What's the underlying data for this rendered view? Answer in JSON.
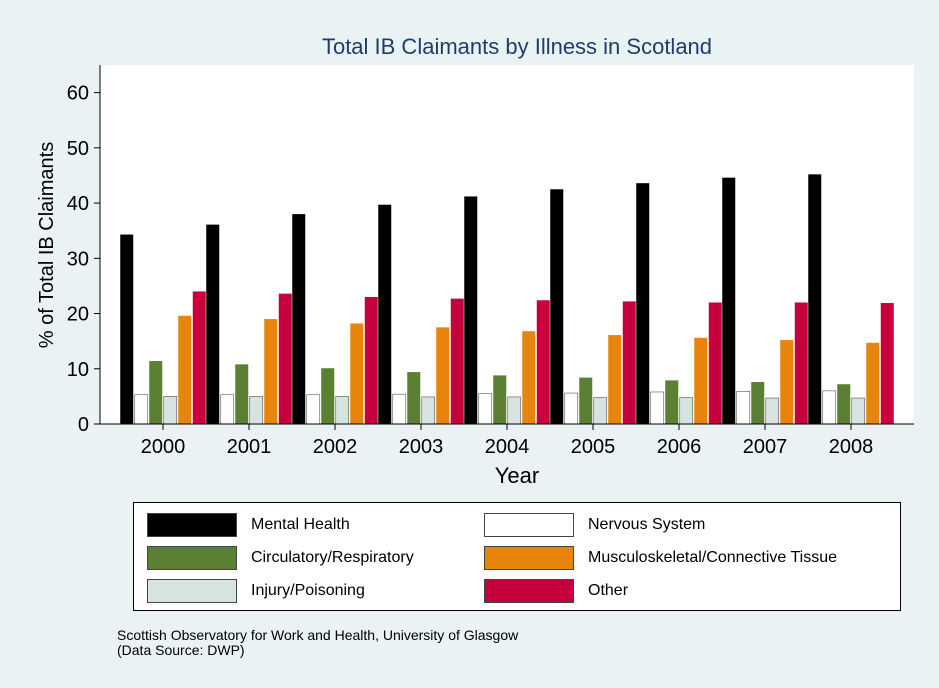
{
  "chart_data": {
    "type": "bar",
    "title": "Total IB Claimants by Illness in Scotland",
    "xlabel": "Year",
    "ylabel": "% of Total IB Claimants",
    "ylim": [
      0,
      65
    ],
    "yticks": [
      0,
      10,
      20,
      30,
      40,
      50,
      60
    ],
    "grid": false,
    "legend_position": "bottom",
    "categories": [
      "2000",
      "2001",
      "2002",
      "2003",
      "2004",
      "2005",
      "2006",
      "2007",
      "2008"
    ],
    "series": [
      {
        "name": "Mental Health",
        "color": "#000000",
        "values": [
          34.3,
          36.1,
          38.0,
          39.7,
          41.2,
          42.5,
          43.6,
          44.6,
          45.2
        ]
      },
      {
        "name": "Nervous System",
        "color": "#ffffff",
        "values": [
          5.3,
          5.3,
          5.3,
          5.4,
          5.5,
          5.6,
          5.8,
          5.9,
          6.0
        ]
      },
      {
        "name": "Circulatory/Respiratory",
        "color": "#5b7f33",
        "values": [
          11.4,
          10.8,
          10.1,
          9.4,
          8.8,
          8.4,
          7.9,
          7.6,
          7.2
        ]
      },
      {
        "name": "Injury/Poisoning",
        "color": "#d6e3e0",
        "values": [
          5.0,
          5.0,
          5.0,
          4.9,
          4.9,
          4.8,
          4.8,
          4.7,
          4.7
        ]
      },
      {
        "name": "Musculoskeletal/Connective Tissue",
        "color": "#e8830b",
        "values": [
          19.6,
          19.0,
          18.2,
          17.5,
          16.8,
          16.1,
          15.6,
          15.2,
          14.7
        ]
      },
      {
        "name": "Other",
        "color": "#c5003c",
        "values": [
          24.0,
          23.6,
          23.0,
          22.7,
          22.4,
          22.2,
          22.0,
          22.0,
          21.9
        ]
      }
    ]
  },
  "colors": {
    "background": "#eaf2f3",
    "plot_background": "#ffffff",
    "title": "#1f3d6b"
  },
  "footer": {
    "line1": "Scottish Observatory for Work and Health, University of Glasgow",
    "line2": "(Data Source: DWP)"
  }
}
